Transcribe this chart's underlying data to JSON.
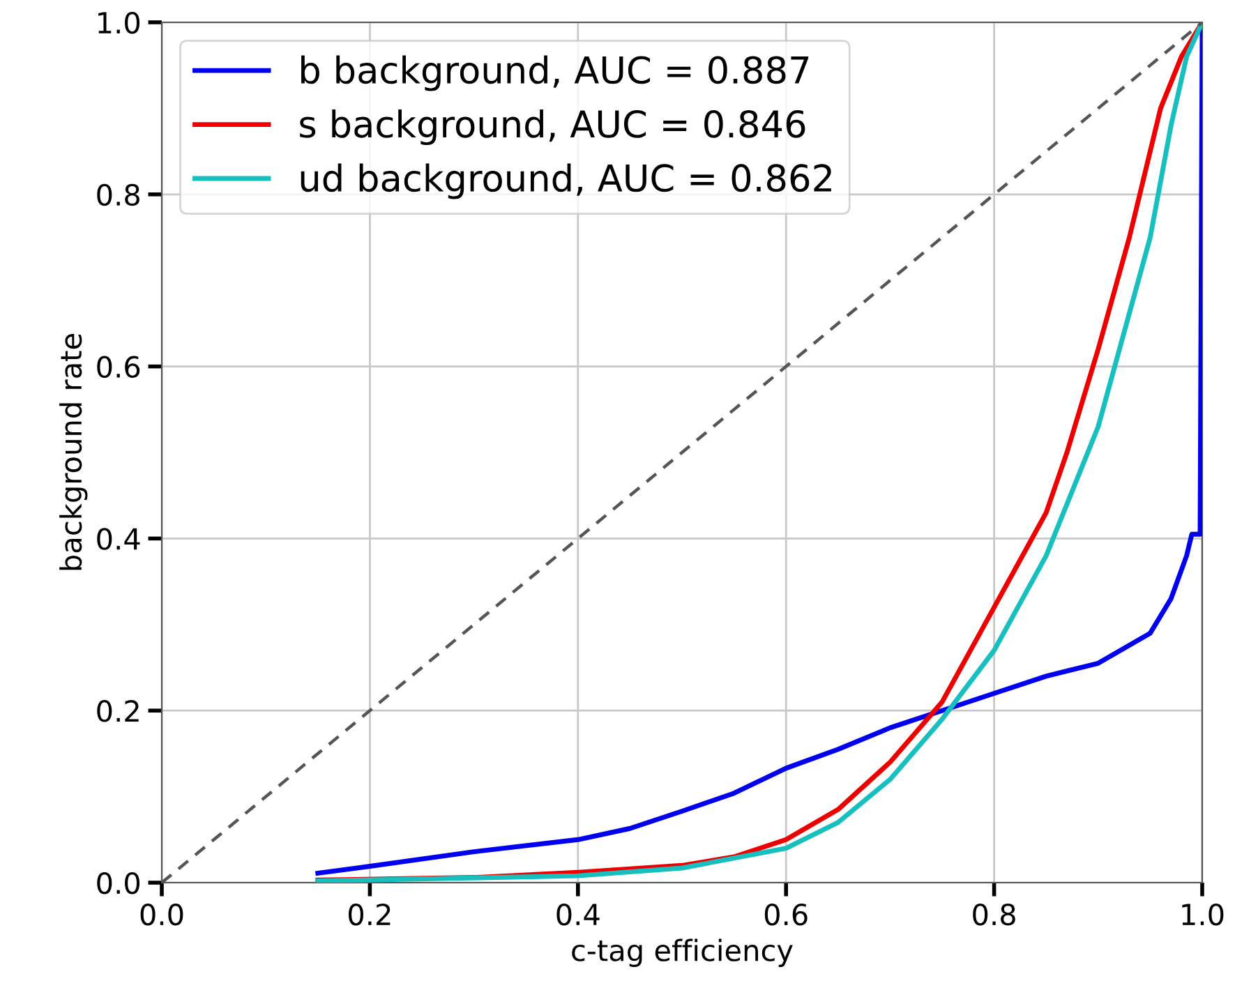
{
  "chart_data": {
    "type": "line",
    "xlabel": "c-tag efficiency",
    "ylabel": "background rate",
    "xlim": [
      0.0,
      1.0
    ],
    "ylim": [
      0.0,
      1.0
    ],
    "xticks": [
      {
        "value": 0,
        "label": "0.0"
      },
      0.2,
      0.4,
      0.6,
      0.8,
      {
        "value": 1,
        "label": "1.0"
      }
    ],
    "yticks": [
      {
        "value": 0,
        "label": "0.0"
      },
      0.2,
      0.4,
      0.6,
      0.8,
      {
        "value": 1,
        "label": "1.0"
      }
    ],
    "grid": true,
    "legend": "top left",
    "series": [
      {
        "name": "b background, AUC = 0.887",
        "color": "#0000ee",
        "x": [
          0.15,
          0.2,
          0.3,
          0.4,
          0.45,
          0.5,
          0.55,
          0.6,
          0.65,
          0.7,
          0.75,
          0.8,
          0.85,
          0.9,
          0.95,
          0.97,
          0.985,
          0.99,
          0.998,
          1.0
        ],
        "values": [
          0.011,
          0.019,
          0.036,
          0.05,
          0.063,
          0.083,
          0.104,
          0.133,
          0.155,
          0.18,
          0.2,
          0.22,
          0.24,
          0.255,
          0.29,
          0.33,
          0.38,
          0.405,
          0.405,
          1.0
        ]
      },
      {
        "name": "s background, AUC = 0.846",
        "color": "#ee0000",
        "x": [
          0.15,
          0.3,
          0.4,
          0.5,
          0.55,
          0.6,
          0.65,
          0.7,
          0.75,
          0.8,
          0.85,
          0.87,
          0.9,
          0.93,
          0.96,
          0.98,
          1.0
        ],
        "values": [
          0.003,
          0.006,
          0.012,
          0.02,
          0.03,
          0.05,
          0.085,
          0.14,
          0.21,
          0.32,
          0.43,
          0.5,
          0.62,
          0.75,
          0.9,
          0.96,
          1.0
        ]
      },
      {
        "name": "ud background, AUC = 0.862",
        "color": "#17bfbf",
        "x": [
          0.15,
          0.4,
          0.5,
          0.6,
          0.65,
          0.7,
          0.75,
          0.8,
          0.85,
          0.9,
          0.95,
          0.97,
          0.985,
          1.0
        ],
        "values": [
          0.002,
          0.008,
          0.017,
          0.04,
          0.07,
          0.12,
          0.19,
          0.27,
          0.38,
          0.53,
          0.75,
          0.88,
          0.96,
          1.0
        ]
      },
      {
        "color": "#555555",
        "line_style": "dashed",
        "x": [
          0.0,
          1.0
        ],
        "values": [
          0.0,
          1.0
        ]
      }
    ]
  }
}
